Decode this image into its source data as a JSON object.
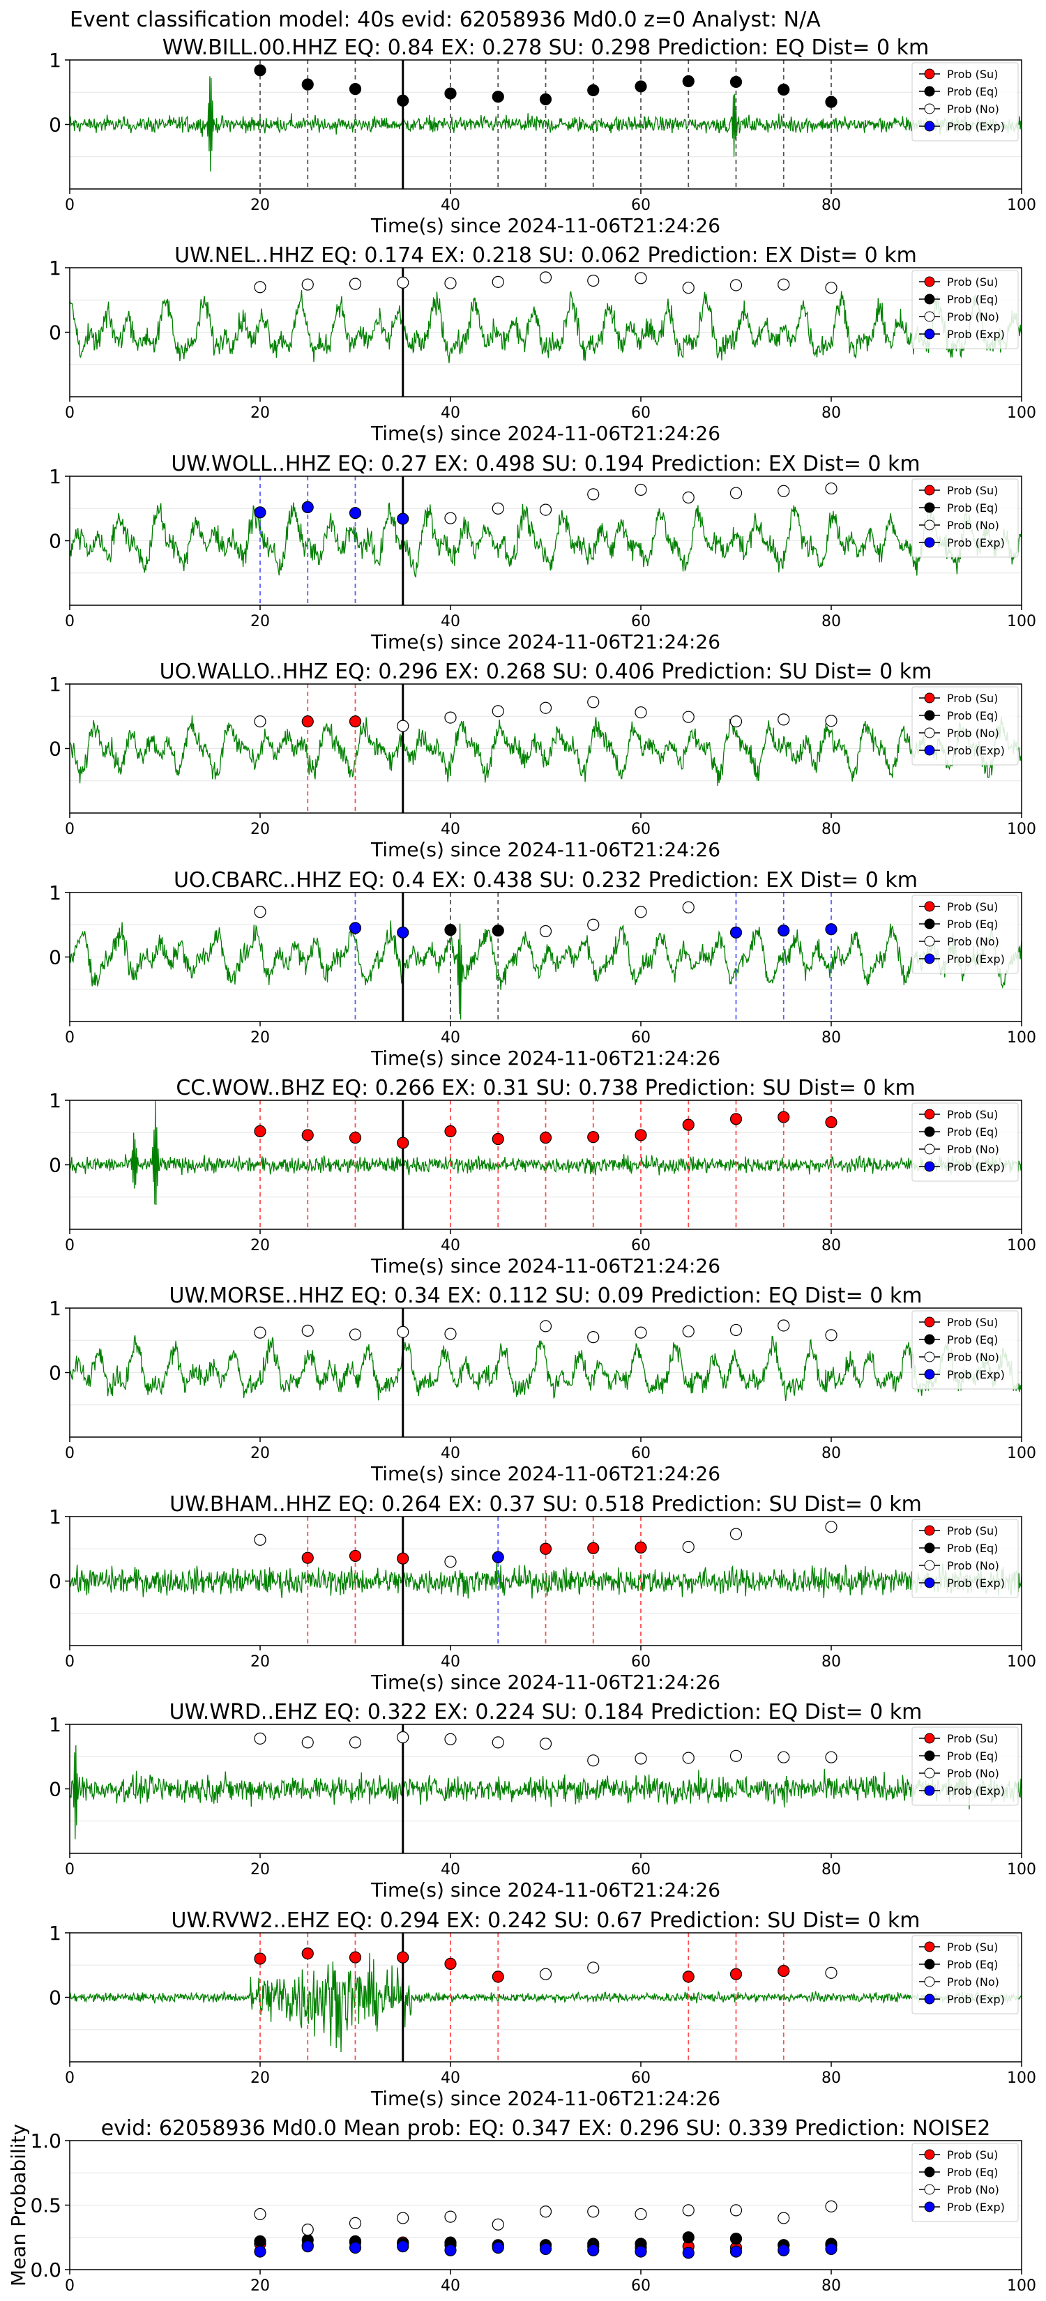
{
  "figure": {
    "suptitle": "Event classification model: 40s evid: 62058936 Md0.0 z=0 Analyst: N/A",
    "legend": [
      "Prob (Su)",
      "Prob (Eq)",
      "Prob (No)",
      "Prob (Exp)"
    ],
    "colors": {
      "waveform": "#008000",
      "su": "#ff0000",
      "eq": "#000000",
      "no": "#ffffff",
      "exp": "#0000ff",
      "su_line": "#ff4d4d",
      "eq_line": "#555555",
      "exp_line": "#5b5bff",
      "vline": "#000000"
    }
  },
  "chart_data": [
    {
      "type": "line",
      "title": "WW.BILL.00.HHZ   EQ: 0.84   EX: 0.278   SU: 0.298   Prediction: EQ    Dist= 0 km",
      "xlabel": "Time(s) since 2024-11-06T21:24:26",
      "ylabel": "",
      "xlim": [
        0,
        100
      ],
      "ylim": [
        -1,
        1
      ],
      "xticks": [
        "0",
        "20",
        "40",
        "60",
        "80",
        "100"
      ],
      "yticks": [
        "0",
        "1"
      ],
      "vline": 35,
      "grid": true,
      "legend_position": "top-right",
      "waveform": {
        "amplitude": 0.12,
        "spikes": [
          [
            14.8,
            1.0
          ],
          [
            69.8,
            0.55
          ]
        ]
      },
      "probs": [
        {
          "t": 20,
          "p": 0.84,
          "cls": "eq"
        },
        {
          "t": 25,
          "p": 0.62,
          "cls": "eq"
        },
        {
          "t": 30,
          "p": 0.55,
          "cls": "eq"
        },
        {
          "t": 35,
          "p": 0.37,
          "cls": "eq"
        },
        {
          "t": 40,
          "p": 0.48,
          "cls": "eq"
        },
        {
          "t": 45,
          "p": 0.43,
          "cls": "eq"
        },
        {
          "t": 50,
          "p": 0.39,
          "cls": "eq"
        },
        {
          "t": 55,
          "p": 0.53,
          "cls": "eq"
        },
        {
          "t": 60,
          "p": 0.59,
          "cls": "eq"
        },
        {
          "t": 65,
          "p": 0.67,
          "cls": "eq"
        },
        {
          "t": 70,
          "p": 0.66,
          "cls": "eq"
        },
        {
          "t": 75,
          "p": 0.54,
          "cls": "eq"
        },
        {
          "t": 80,
          "p": 0.35,
          "cls": "eq"
        }
      ]
    },
    {
      "type": "line",
      "title": "UW.NEL..HHZ   EQ: 0.174  EX: 0.218  SU: 0.062   Prediction: EX    Dist= 0 km",
      "xlabel": "Time(s) since 2024-11-06T21:24:26",
      "ylabel": "",
      "xlim": [
        0,
        100
      ],
      "ylim": [
        -1,
        1
      ],
      "xticks": [
        "0",
        "20",
        "40",
        "60",
        "80",
        "100"
      ],
      "yticks": [
        "0",
        "1"
      ],
      "vline": 35,
      "grid": true,
      "legend_position": "top-right",
      "waveform": {
        "amplitude": 0.5,
        "spikes": []
      },
      "probs": [
        {
          "t": 20,
          "p": 0.7,
          "cls": "no"
        },
        {
          "t": 25,
          "p": 0.74,
          "cls": "no"
        },
        {
          "t": 30,
          "p": 0.75,
          "cls": "no"
        },
        {
          "t": 35,
          "p": 0.77,
          "cls": "no"
        },
        {
          "t": 40,
          "p": 0.76,
          "cls": "no"
        },
        {
          "t": 45,
          "p": 0.78,
          "cls": "no"
        },
        {
          "t": 50,
          "p": 0.85,
          "cls": "no"
        },
        {
          "t": 55,
          "p": 0.8,
          "cls": "no"
        },
        {
          "t": 60,
          "p": 0.84,
          "cls": "no"
        },
        {
          "t": 65,
          "p": 0.69,
          "cls": "no"
        },
        {
          "t": 70,
          "p": 0.73,
          "cls": "no"
        },
        {
          "t": 75,
          "p": 0.74,
          "cls": "no"
        },
        {
          "t": 80,
          "p": 0.69,
          "cls": "no"
        }
      ]
    },
    {
      "type": "line",
      "title": "UW.WOLL..HHZ   EQ: 0.27  EX: 0.498  SU: 0.194   Prediction: EX    Dist= 0 km",
      "xlabel": "Time(s) since 2024-11-06T21:24:26",
      "ylabel": "",
      "xlim": [
        0,
        100
      ],
      "ylim": [
        -1,
        1
      ],
      "xticks": [
        "0",
        "20",
        "40",
        "60",
        "80",
        "100"
      ],
      "yticks": [
        "0",
        "1"
      ],
      "vline": 35,
      "grid": true,
      "legend_position": "top-right",
      "waveform": {
        "amplitude": 0.5,
        "spikes": []
      },
      "probs": [
        {
          "t": 20,
          "p": 0.44,
          "cls": "exp"
        },
        {
          "t": 25,
          "p": 0.52,
          "cls": "exp"
        },
        {
          "t": 30,
          "p": 0.43,
          "cls": "exp"
        },
        {
          "t": 35,
          "p": 0.34,
          "cls": "exp"
        },
        {
          "t": 40,
          "p": 0.35,
          "cls": "no"
        },
        {
          "t": 45,
          "p": 0.5,
          "cls": "no"
        },
        {
          "t": 50,
          "p": 0.48,
          "cls": "no"
        },
        {
          "t": 55,
          "p": 0.72,
          "cls": "no"
        },
        {
          "t": 60,
          "p": 0.79,
          "cls": "no"
        },
        {
          "t": 65,
          "p": 0.67,
          "cls": "no"
        },
        {
          "t": 70,
          "p": 0.74,
          "cls": "no"
        },
        {
          "t": 75,
          "p": 0.77,
          "cls": "no"
        },
        {
          "t": 80,
          "p": 0.81,
          "cls": "no"
        }
      ]
    },
    {
      "type": "line",
      "title": "UO.WALLO..HHZ   EQ: 0.296  EX: 0.268  SU: 0.406   Prediction: SU    Dist= 0 km",
      "xlabel": "Time(s) since 2024-11-06T21:24:26",
      "ylabel": "",
      "xlim": [
        0,
        100
      ],
      "ylim": [
        -1,
        1
      ],
      "xticks": [
        "0",
        "20",
        "40",
        "60",
        "80",
        "100"
      ],
      "yticks": [
        "0",
        "1"
      ],
      "vline": 35,
      "grid": true,
      "legend_position": "top-right",
      "waveform": {
        "amplitude": 0.45,
        "spikes": []
      },
      "probs": [
        {
          "t": 20,
          "p": 0.42,
          "cls": "no"
        },
        {
          "t": 25,
          "p": 0.42,
          "cls": "su"
        },
        {
          "t": 30,
          "p": 0.42,
          "cls": "su"
        },
        {
          "t": 35,
          "p": 0.35,
          "cls": "no"
        },
        {
          "t": 40,
          "p": 0.48,
          "cls": "no"
        },
        {
          "t": 45,
          "p": 0.58,
          "cls": "no"
        },
        {
          "t": 50,
          "p": 0.63,
          "cls": "no"
        },
        {
          "t": 55,
          "p": 0.72,
          "cls": "no"
        },
        {
          "t": 60,
          "p": 0.56,
          "cls": "no"
        },
        {
          "t": 65,
          "p": 0.49,
          "cls": "no"
        },
        {
          "t": 70,
          "p": 0.42,
          "cls": "no"
        },
        {
          "t": 75,
          "p": 0.45,
          "cls": "no"
        },
        {
          "t": 80,
          "p": 0.43,
          "cls": "no"
        }
      ]
    },
    {
      "type": "line",
      "title": "UO.CBARC..HHZ   EQ: 0.4  EX: 0.438  SU: 0.232   Prediction: EX    Dist= 0 km",
      "xlabel": "Time(s) since 2024-11-06T21:24:26",
      "ylabel": "",
      "xlim": [
        0,
        100
      ],
      "ylim": [
        -1,
        1
      ],
      "xticks": [
        "0",
        "20",
        "40",
        "60",
        "80",
        "100"
      ],
      "yticks": [
        "0",
        "1"
      ],
      "vline": 35,
      "grid": true,
      "legend_position": "top-right",
      "waveform": {
        "amplitude": 0.45,
        "spikes": [
          [
            41.0,
            0.85
          ]
        ]
      },
      "probs": [
        {
          "t": 20,
          "p": 0.7,
          "cls": "no"
        },
        {
          "t": 30,
          "p": 0.45,
          "cls": "exp"
        },
        {
          "t": 35,
          "p": 0.38,
          "cls": "exp"
        },
        {
          "t": 40,
          "p": 0.42,
          "cls": "eq"
        },
        {
          "t": 45,
          "p": 0.41,
          "cls": "eq"
        },
        {
          "t": 50,
          "p": 0.4,
          "cls": "no"
        },
        {
          "t": 55,
          "p": 0.5,
          "cls": "no"
        },
        {
          "t": 60,
          "p": 0.7,
          "cls": "no"
        },
        {
          "t": 65,
          "p": 0.77,
          "cls": "no"
        },
        {
          "t": 70,
          "p": 0.38,
          "cls": "exp"
        },
        {
          "t": 75,
          "p": 0.41,
          "cls": "exp"
        },
        {
          "t": 80,
          "p": 0.43,
          "cls": "exp"
        }
      ]
    },
    {
      "type": "line",
      "title": "CC.WOW..BHZ   EQ: 0.266  EX: 0.31  SU: 0.738   Prediction: SU    Dist= 0 km",
      "xlabel": "Time(s) since 2024-11-06T21:24:26",
      "ylabel": "",
      "xlim": [
        0,
        100
      ],
      "ylim": [
        -1,
        1
      ],
      "xticks": [
        "0",
        "20",
        "40",
        "60",
        "80",
        "100"
      ],
      "yticks": [
        "0",
        "1"
      ],
      "vline": 35,
      "grid": true,
      "legend_position": "top-right",
      "waveform": {
        "amplitude": 0.12,
        "spikes": [
          [
            9.0,
            0.95
          ],
          [
            6.8,
            0.6
          ]
        ]
      },
      "probs": [
        {
          "t": 20,
          "p": 0.52,
          "cls": "su"
        },
        {
          "t": 25,
          "p": 0.46,
          "cls": "su"
        },
        {
          "t": 30,
          "p": 0.42,
          "cls": "su"
        },
        {
          "t": 35,
          "p": 0.34,
          "cls": "su"
        },
        {
          "t": 40,
          "p": 0.52,
          "cls": "su"
        },
        {
          "t": 45,
          "p": 0.4,
          "cls": "su"
        },
        {
          "t": 50,
          "p": 0.42,
          "cls": "su"
        },
        {
          "t": 55,
          "p": 0.43,
          "cls": "su"
        },
        {
          "t": 60,
          "p": 0.46,
          "cls": "su"
        },
        {
          "t": 65,
          "p": 0.62,
          "cls": "su"
        },
        {
          "t": 70,
          "p": 0.71,
          "cls": "su"
        },
        {
          "t": 75,
          "p": 0.74,
          "cls": "su"
        },
        {
          "t": 80,
          "p": 0.66,
          "cls": "su"
        }
      ]
    },
    {
      "type": "line",
      "title": "UW.MORSE..HHZ   EQ: 0.34  EX: 0.112  SU: 0.09   Prediction: EQ    Dist= 0 km",
      "xlabel": "Time(s) since 2024-11-06T21:24:26",
      "ylabel": "",
      "xlim": [
        0,
        100
      ],
      "ylim": [
        -1,
        1
      ],
      "xticks": [
        "0",
        "20",
        "40",
        "60",
        "80",
        "100"
      ],
      "yticks": [
        "0",
        "1"
      ],
      "vline": 35,
      "grid": true,
      "legend_position": "top-right",
      "waveform": {
        "amplitude": 0.45,
        "spikes": []
      },
      "probs": [
        {
          "t": 20,
          "p": 0.62,
          "cls": "no"
        },
        {
          "t": 25,
          "p": 0.65,
          "cls": "no"
        },
        {
          "t": 30,
          "p": 0.59,
          "cls": "no"
        },
        {
          "t": 35,
          "p": 0.63,
          "cls": "no"
        },
        {
          "t": 40,
          "p": 0.6,
          "cls": "no"
        },
        {
          "t": 50,
          "p": 0.72,
          "cls": "no"
        },
        {
          "t": 55,
          "p": 0.55,
          "cls": "no"
        },
        {
          "t": 60,
          "p": 0.62,
          "cls": "no"
        },
        {
          "t": 65,
          "p": 0.64,
          "cls": "no"
        },
        {
          "t": 70,
          "p": 0.66,
          "cls": "no"
        },
        {
          "t": 75,
          "p": 0.73,
          "cls": "no"
        },
        {
          "t": 80,
          "p": 0.58,
          "cls": "no"
        }
      ]
    },
    {
      "type": "line",
      "title": "UW.BHAM..HHZ   EQ: 0.264  EX: 0.37  SU: 0.518   Prediction: SU    Dist= 0 km",
      "xlabel": "Time(s) since 2024-11-06T21:24:26",
      "ylabel": "",
      "xlim": [
        0,
        100
      ],
      "ylim": [
        -1,
        1
      ],
      "xticks": [
        "0",
        "20",
        "40",
        "60",
        "80",
        "100"
      ],
      "yticks": [
        "0",
        "1"
      ],
      "vline": 35,
      "grid": true,
      "legend_position": "top-right",
      "waveform": {
        "amplitude": 0.2,
        "spikes": []
      },
      "probs": [
        {
          "t": 20,
          "p": 0.64,
          "cls": "no"
        },
        {
          "t": 25,
          "p": 0.36,
          "cls": "su"
        },
        {
          "t": 30,
          "p": 0.39,
          "cls": "su"
        },
        {
          "t": 35,
          "p": 0.35,
          "cls": "su"
        },
        {
          "t": 40,
          "p": 0.3,
          "cls": "no"
        },
        {
          "t": 45,
          "p": 0.37,
          "cls": "exp"
        },
        {
          "t": 50,
          "p": 0.5,
          "cls": "su"
        },
        {
          "t": 55,
          "p": 0.51,
          "cls": "su"
        },
        {
          "t": 60,
          "p": 0.52,
          "cls": "su"
        },
        {
          "t": 65,
          "p": 0.53,
          "cls": "no"
        },
        {
          "t": 70,
          "p": 0.73,
          "cls": "no"
        },
        {
          "t": 80,
          "p": 0.84,
          "cls": "no"
        }
      ]
    },
    {
      "type": "line",
      "title": "UW.WRD..EHZ   EQ: 0.322  EX: 0.224  SU: 0.184   Prediction: EQ    Dist= 0 km",
      "xlabel": "Time(s) since 2024-11-06T21:24:26",
      "ylabel": "",
      "xlim": [
        0,
        100
      ],
      "ylim": [
        -1,
        1
      ],
      "xticks": [
        "0",
        "20",
        "40",
        "60",
        "80",
        "100"
      ],
      "yticks": [
        "0",
        "1"
      ],
      "vline": 35,
      "grid": true,
      "legend_position": "top-right",
      "waveform": {
        "amplitude": 0.2,
        "spikes": [
          [
            0.6,
            -0.9
          ]
        ]
      },
      "probs": [
        {
          "t": 20,
          "p": 0.78,
          "cls": "no"
        },
        {
          "t": 25,
          "p": 0.72,
          "cls": "no"
        },
        {
          "t": 30,
          "p": 0.72,
          "cls": "no"
        },
        {
          "t": 35,
          "p": 0.8,
          "cls": "no"
        },
        {
          "t": 40,
          "p": 0.77,
          "cls": "no"
        },
        {
          "t": 45,
          "p": 0.72,
          "cls": "no"
        },
        {
          "t": 50,
          "p": 0.7,
          "cls": "no"
        },
        {
          "t": 55,
          "p": 0.44,
          "cls": "no"
        },
        {
          "t": 60,
          "p": 0.47,
          "cls": "no"
        },
        {
          "t": 65,
          "p": 0.48,
          "cls": "no"
        },
        {
          "t": 70,
          "p": 0.51,
          "cls": "no"
        },
        {
          "t": 75,
          "p": 0.49,
          "cls": "no"
        },
        {
          "t": 80,
          "p": 0.49,
          "cls": "no"
        }
      ]
    },
    {
      "type": "line",
      "title": "UW.RVW2..EHZ   EQ: 0.294  EX: 0.242  SU: 0.67   Prediction: SU    Dist= 0 km",
      "xlabel": "Time(s) since 2024-11-06T21:24:26",
      "ylabel": "",
      "xlim": [
        0,
        100
      ],
      "ylim": [
        -1,
        1
      ],
      "xticks": [
        "0",
        "20",
        "40",
        "60",
        "80",
        "100"
      ],
      "yticks": [
        "0",
        "1"
      ],
      "vline": 35,
      "grid": true,
      "legend_position": "top-right",
      "waveform": {
        "amplitude": 0.07,
        "burst": [
          19,
          36,
          0.6
        ],
        "spikes": []
      },
      "probs": [
        {
          "t": 20,
          "p": 0.6,
          "cls": "su"
        },
        {
          "t": 25,
          "p": 0.68,
          "cls": "su"
        },
        {
          "t": 30,
          "p": 0.62,
          "cls": "su"
        },
        {
          "t": 35,
          "p": 0.62,
          "cls": "su"
        },
        {
          "t": 40,
          "p": 0.52,
          "cls": "su"
        },
        {
          "t": 45,
          "p": 0.32,
          "cls": "su"
        },
        {
          "t": 50,
          "p": 0.36,
          "cls": "no"
        },
        {
          "t": 55,
          "p": 0.46,
          "cls": "no"
        },
        {
          "t": 65,
          "p": 0.32,
          "cls": "su"
        },
        {
          "t": 70,
          "p": 0.36,
          "cls": "su"
        },
        {
          "t": 75,
          "p": 0.41,
          "cls": "su"
        },
        {
          "t": 80,
          "p": 0.38,
          "cls": "no"
        }
      ]
    },
    {
      "type": "scatter",
      "title": "evid: 62058936   Md0.0   Mean prob:   EQ: 0.347  EX: 0.296  SU: 0.339   Prediction: NOISE2",
      "xlabel": "",
      "ylabel": "Mean Probability",
      "xlim": [
        0,
        100
      ],
      "ylim": [
        0,
        1
      ],
      "xticks": [
        "0",
        "20",
        "40",
        "60",
        "80",
        "100"
      ],
      "yticks": [
        "0.0",
        "0.5",
        "1.0"
      ],
      "grid": true,
      "legend_position": "top-right",
      "x": [
        20,
        25,
        30,
        35,
        40,
        45,
        50,
        55,
        60,
        65,
        70,
        75,
        80
      ],
      "series": [
        {
          "name": "Prob (Su)",
          "cls": "su",
          "values": [
            0.2,
            0.19,
            0.21,
            0.21,
            0.19,
            0.18,
            0.19,
            0.18,
            0.17,
            0.18,
            0.17,
            0.19,
            0.19
          ]
        },
        {
          "name": "Prob (Eq)",
          "cls": "eq",
          "values": [
            0.22,
            0.23,
            0.22,
            0.2,
            0.21,
            0.19,
            0.19,
            0.2,
            0.2,
            0.25,
            0.24,
            0.19,
            0.2
          ]
        },
        {
          "name": "Prob (No)",
          "cls": "no",
          "values": [
            0.43,
            0.31,
            0.36,
            0.4,
            0.41,
            0.35,
            0.45,
            0.45,
            0.43,
            0.46,
            0.46,
            0.4,
            0.49
          ]
        },
        {
          "name": "Prob (Exp)",
          "cls": "exp",
          "values": [
            0.14,
            0.18,
            0.17,
            0.18,
            0.15,
            0.17,
            0.16,
            0.15,
            0.14,
            0.13,
            0.14,
            0.15,
            0.16
          ]
        }
      ]
    }
  ]
}
